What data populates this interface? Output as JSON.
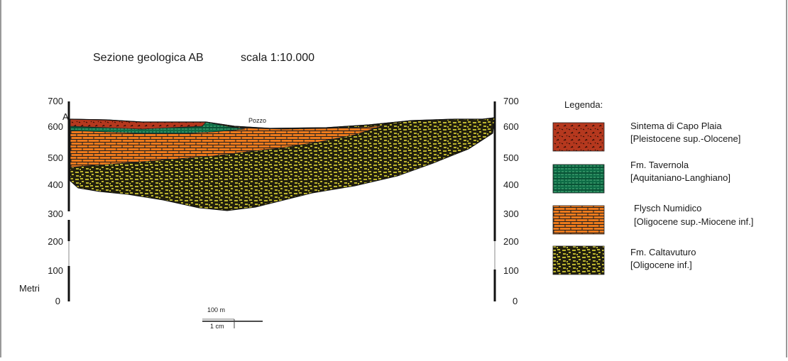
{
  "title": "Sezione geologica AB",
  "scale_text": "scala 1:10.000",
  "section_label": "A",
  "well_label": "Pozzo",
  "left_axis": {
    "label": "Metri",
    "ticks": [
      "700",
      "600",
      "500",
      "400",
      "300",
      "200",
      "100",
      "0"
    ]
  },
  "right_axis": {
    "ticks": [
      "700",
      "600",
      "500",
      "400",
      "300",
      "200",
      "100",
      "0"
    ]
  },
  "scalebar": {
    "top_label": "100 m",
    "bottom_label": "1 cm"
  },
  "legend": {
    "heading": "Legenda:",
    "items": [
      {
        "name": "Sintema di Capo Plaia",
        "age": "[Pleistocene sup.-Olocene]",
        "color": "#b5381e"
      },
      {
        "name": "Fm. Tavernola",
        "age": "[Aquitaniano-Langhiano]",
        "color": "#0d6b45"
      },
      {
        "name": "Flysch Numidico",
        "age": "[Oligocene sup.-Miocene inf.]",
        "color": "#ee7a1c"
      },
      {
        "name": "Fm. Caltavuturo",
        "age": "[Oligocene inf.]",
        "color": "#22200e"
      }
    ]
  }
}
